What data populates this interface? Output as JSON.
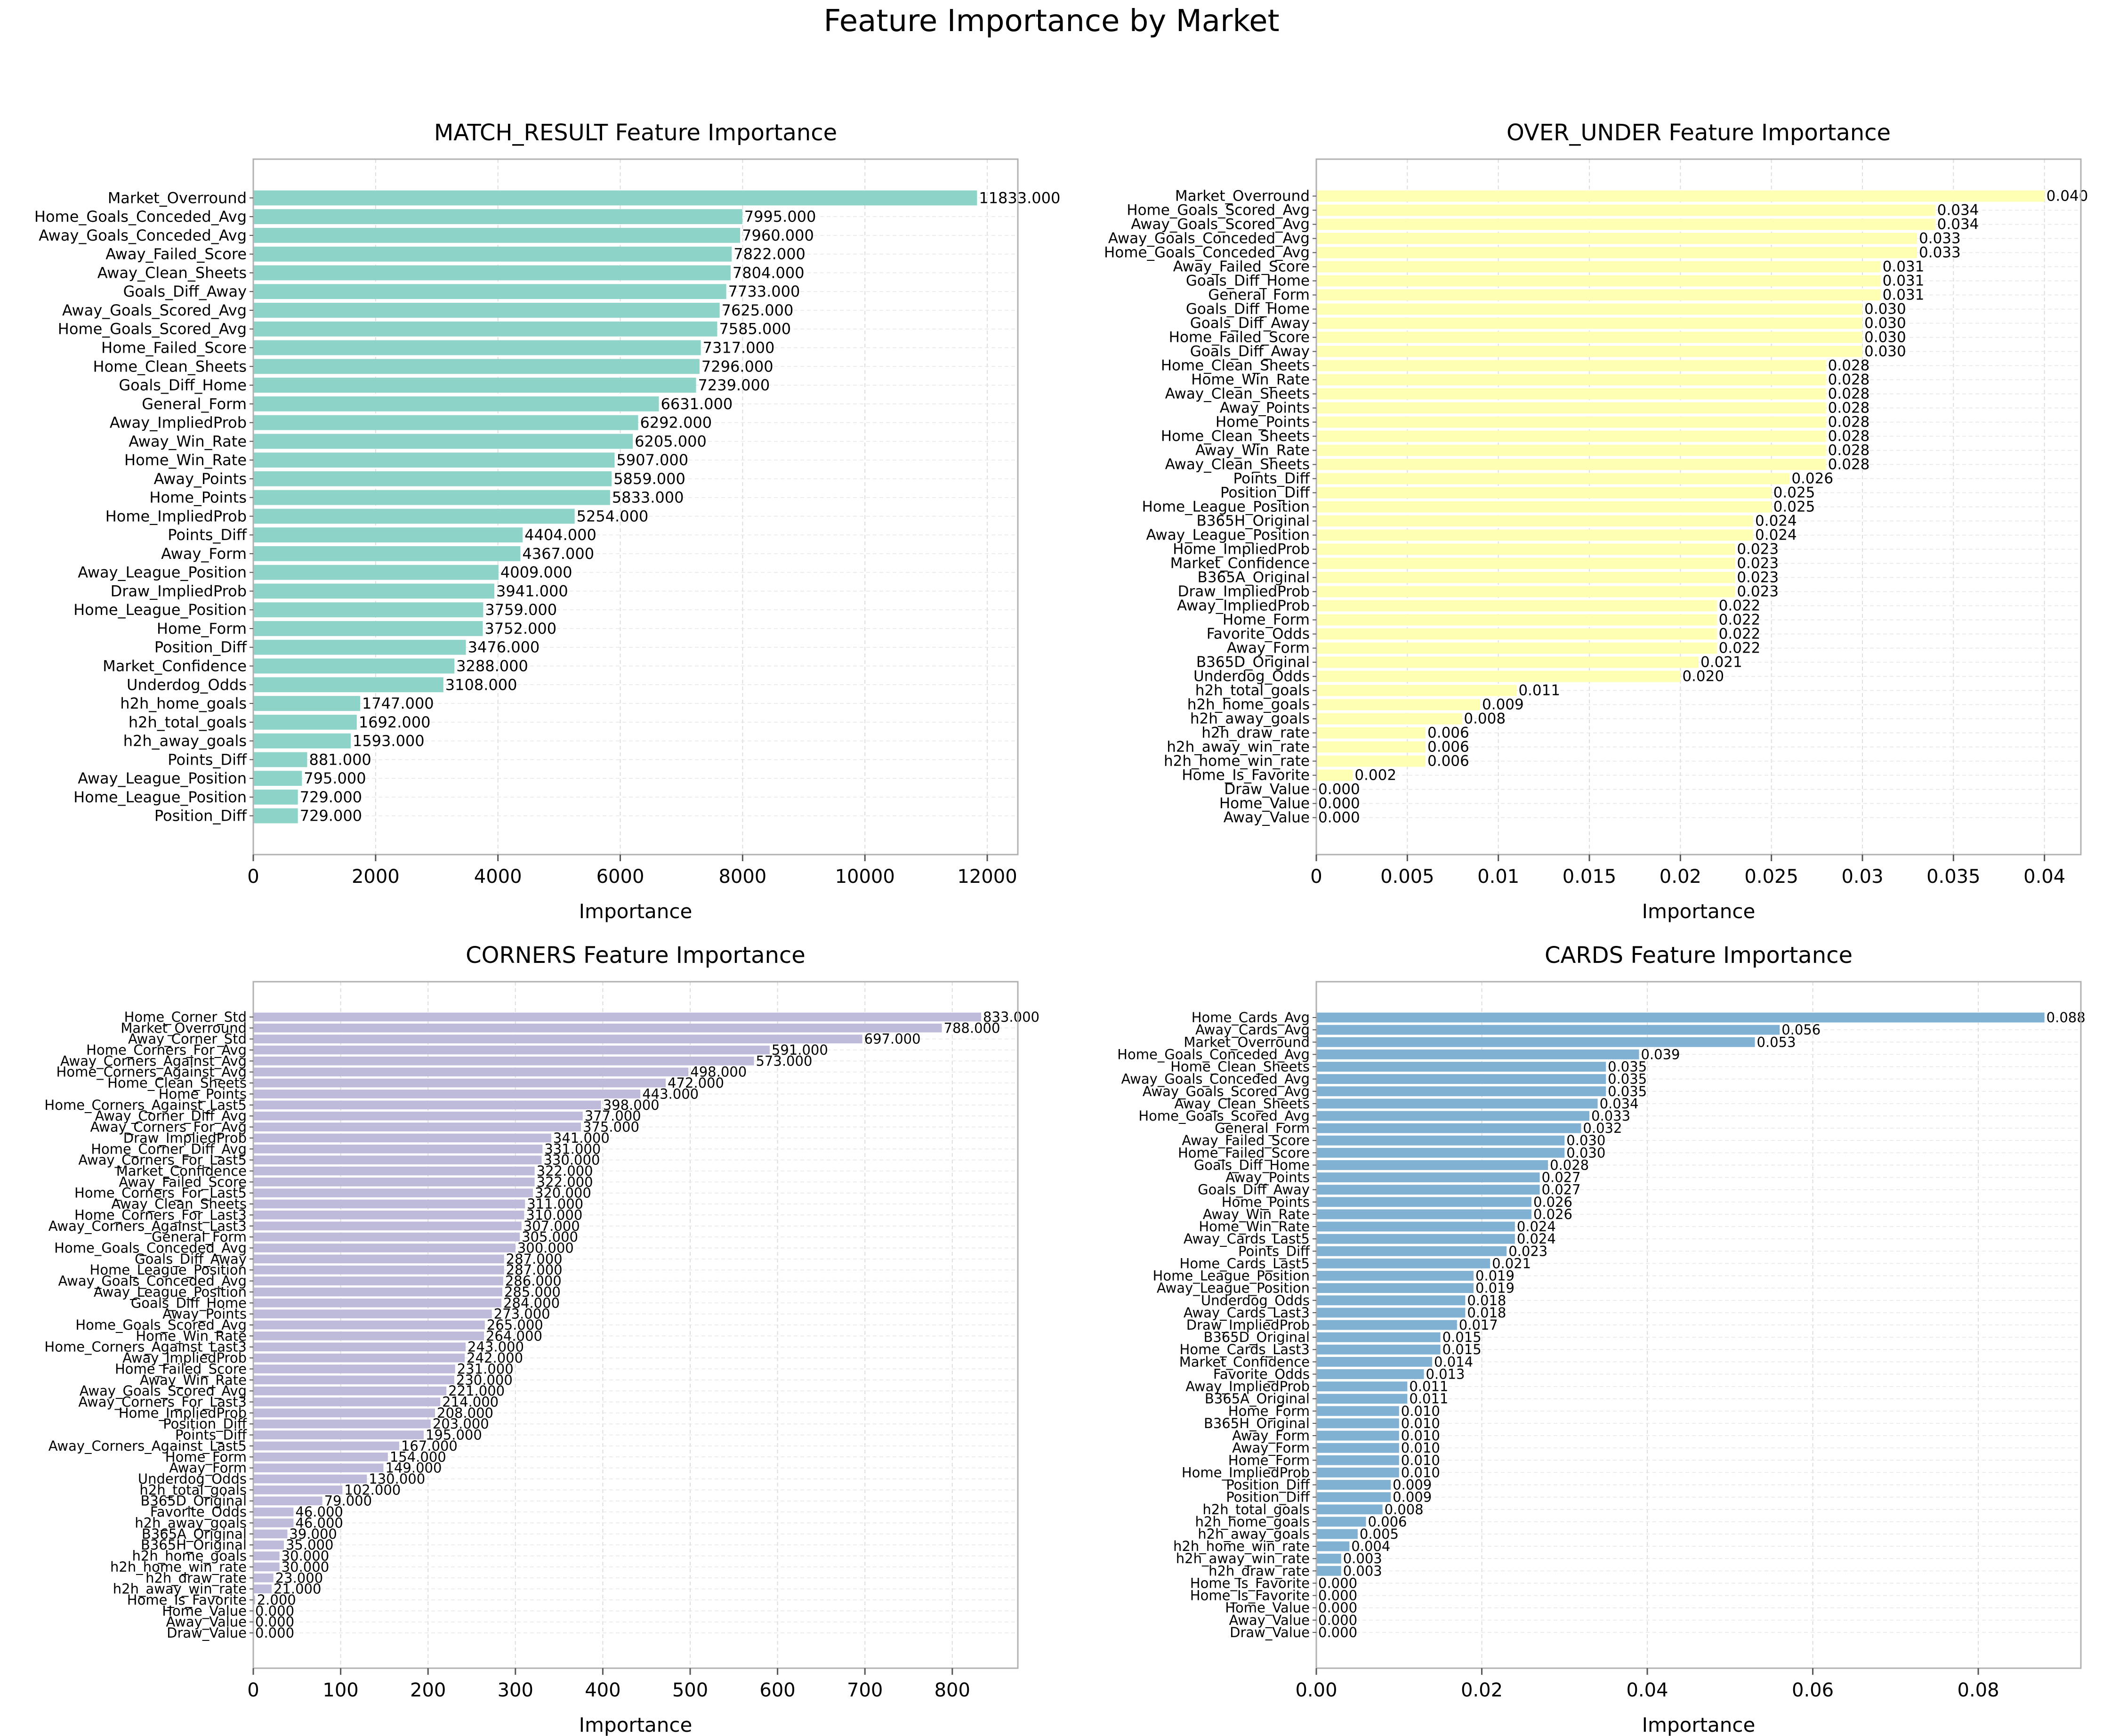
{
  "figure_title": "Feature Importance by Market",
  "chart_data": [
    {
      "type": "bar",
      "orientation": "horizontal",
      "title": "MATCH_RESULT Feature Importance",
      "xlabel": "Importance",
      "ylabel": "",
      "xlim": [
        0,
        12500
      ],
      "xticks": [
        0,
        2000,
        4000,
        6000,
        8000,
        10000,
        12000
      ],
      "value_decimals": 3,
      "grid": true,
      "color": "#8dd3c7",
      "categories": [
        "Market_Overround",
        "Home_Goals_Conceded_Avg",
        "Away_Goals_Conceded_Avg",
        "Away_Failed_Score",
        "Away_Clean_Sheets",
        "Goals_Diff_Away",
        "Away_Goals_Scored_Avg",
        "Home_Goals_Scored_Avg",
        "Home_Failed_Score",
        "Home_Clean_Sheets",
        "Goals_Diff_Home",
        "General_Form",
        "Away_ImpliedProb",
        "Away_Win_Rate",
        "Home_Win_Rate",
        "Away_Points",
        "Home_Points",
        "Home_ImpliedProb",
        "Points_Diff",
        "Away_Form",
        "Away_League_Position",
        "Draw_ImpliedProb",
        "Home_League_Position",
        "Home_Form",
        "Position_Diff",
        "Market_Confidence",
        "Underdog_Odds",
        "h2h_home_goals",
        "h2h_total_goals",
        "h2h_away_goals",
        "Points_Diff",
        "Away_League_Position",
        "Home_League_Position",
        "Position_Diff"
      ],
      "values": [
        11833,
        7995,
        7960,
        7822,
        7804,
        7733,
        7625,
        7585,
        7317,
        7296,
        7239,
        6631,
        6292,
        6205,
        5907,
        5859,
        5833,
        5254,
        4404,
        4367,
        4009,
        3941,
        3759,
        3752,
        3476,
        3288,
        3108,
        1747,
        1692,
        1593,
        881,
        795,
        729,
        729
      ]
    },
    {
      "type": "bar",
      "orientation": "horizontal",
      "title": "OVER_UNDER Feature Importance",
      "xlabel": "Importance",
      "ylabel": "",
      "xlim": [
        0,
        0.042
      ],
      "xticks": [
        0,
        0.005,
        0.01,
        0.015,
        0.02,
        0.025,
        0.03,
        0.035,
        0.04
      ],
      "value_decimals": 3,
      "grid": true,
      "color": "#ffffb3",
      "categories": [
        "Market_Overround",
        "Home_Goals_Scored_Avg",
        "Away_Goals_Scored_Avg",
        "Away_Goals_Conceded_Avg",
        "Home_Goals_Conceded_Avg",
        "Away_Failed_Score",
        "Goals_Diff_Home",
        "General_Form",
        "Goals_Diff_Home",
        "Goals_Diff_Away",
        "Home_Failed_Score",
        "Goals_Diff_Away",
        "Home_Clean_Sheets",
        "Home_Win_Rate",
        "Away_Clean_Sheets",
        "Away_Points",
        "Home_Points",
        "Home_Clean_Sheets",
        "Away_Win_Rate",
        "Away_Clean_Sheets",
        "Points_Diff",
        "Position_Diff",
        "Home_League_Position",
        "B365H_Original",
        "Away_League_Position",
        "Home_ImpliedProb",
        "Market_Confidence",
        "B365A_Original",
        "Draw_ImpliedProb",
        "Away_ImpliedProb",
        "Home_Form",
        "Favorite_Odds",
        "Away_Form",
        "B365D_Original",
        "Underdog_Odds",
        "h2h_total_goals",
        "h2h_home_goals",
        "h2h_away_goals",
        "h2h_draw_rate",
        "h2h_away_win_rate",
        "h2h_home_win_rate",
        "Home_Is_Favorite",
        "Draw_Value",
        "Home_Value",
        "Away_Value"
      ],
      "values": [
        0.04,
        0.034,
        0.034,
        0.033,
        0.033,
        0.031,
        0.031,
        0.031,
        0.03,
        0.03,
        0.03,
        0.03,
        0.028,
        0.028,
        0.028,
        0.028,
        0.028,
        0.028,
        0.028,
        0.028,
        0.026,
        0.025,
        0.025,
        0.024,
        0.024,
        0.023,
        0.023,
        0.023,
        0.023,
        0.022,
        0.022,
        0.022,
        0.022,
        0.021,
        0.02,
        0.011,
        0.009,
        0.008,
        0.006,
        0.006,
        0.006,
        0.002,
        0.0,
        0.0,
        0.0
      ]
    },
    {
      "type": "bar",
      "orientation": "horizontal",
      "title": "CORNERS Feature Importance",
      "xlabel": "Importance",
      "ylabel": "",
      "xlim": [
        0,
        875
      ],
      "xticks": [
        0,
        100,
        200,
        300,
        400,
        500,
        600,
        700,
        800
      ],
      "value_decimals": 3,
      "grid": true,
      "color": "#bebada",
      "categories": [
        "Home_Corner_Std",
        "Market_Overround",
        "Away_Corner_Std",
        "Home_Corners_For_Avg",
        "Away_Corners_Against_Avg",
        "Home_Corners_Against_Avg",
        "Home_Clean_Sheets",
        "Home_Points",
        "Home_Corners_Against_Last5",
        "Away_Corner_Diff_Avg",
        "Away_Corners_For_Avg",
        "Draw_ImpliedProb",
        "Home_Corner_Diff_Avg",
        "Away_Corners_For_Last5",
        "Market_Confidence",
        "Away_Failed_Score",
        "Home_Corners_For_Last5",
        "Away_Clean_Sheets",
        "Home_Corners_For_Last3",
        "Away_Corners_Against_Last3",
        "General_Form",
        "Home_Goals_Conceded_Avg",
        "Goals_Diff_Away",
        "Home_League_Position",
        "Away_Goals_Conceded_Avg",
        "Away_League_Position",
        "Goals_Diff_Home",
        "Away_Points",
        "Home_Goals_Scored_Avg",
        "Home_Win_Rate",
        "Home_Corners_Against_Last3",
        "Away_ImpliedProb",
        "Home_Failed_Score",
        "Away_Win_Rate",
        "Away_Goals_Scored_Avg",
        "Away_Corners_For_Last3",
        "Home_ImpliedProb",
        "Position_Diff",
        "Points_Diff",
        "Away_Corners_Against_Last5",
        "Home_Form",
        "Away_Form",
        "Underdog_Odds",
        "h2h_total_goals",
        "B365D_Original",
        "Favorite_Odds",
        "h2h_away_goals",
        "B365A_Original",
        "B365H_Original",
        "h2h_home_goals",
        "h2h_home_win_rate",
        "h2h_draw_rate",
        "h2h_away_win_rate",
        "Home_Is_Favorite",
        "Home_Value",
        "Away_Value",
        "Draw_Value"
      ],
      "values": [
        833,
        788,
        697,
        591,
        573,
        498,
        472,
        443,
        398,
        377,
        375,
        341,
        331,
        330,
        322,
        322,
        320,
        311,
        310,
        307,
        305,
        300,
        287,
        287,
        286,
        285,
        284,
        273,
        265,
        264,
        243,
        242,
        231,
        230,
        221,
        214,
        208,
        203,
        195,
        167,
        154,
        149,
        130,
        102,
        79,
        46,
        46,
        39,
        35,
        30,
        30,
        23,
        21,
        2,
        0,
        0,
        0
      ]
    },
    {
      "type": "bar",
      "orientation": "horizontal",
      "title": "CARDS Feature Importance",
      "xlabel": "Importance",
      "ylabel": "",
      "xlim": [
        0,
        0.0924
      ],
      "xticks": [
        0,
        0.02,
        0.04,
        0.06,
        0.08
      ],
      "tick_labels": [
        "0.00",
        "0.02",
        "0.04",
        "0.06",
        "0.08"
      ],
      "value_decimals": 3,
      "grid": true,
      "color": "#80b1d3",
      "categories": [
        "Home_Cards_Avg",
        "Away_Cards_Avg",
        "Market_Overround",
        "Home_Goals_Conceded_Avg",
        "Home_Clean_Sheets",
        "Away_Goals_Conceded_Avg",
        "Away_Goals_Scored_Avg",
        "Away_Clean_Sheets",
        "Home_Goals_Scored_Avg",
        "General_Form",
        "Away_Failed_Score",
        "Home_Failed_Score",
        "Goals_Diff_Home",
        "Away_Points",
        "Goals_Diff_Away",
        "Home_Points",
        "Away_Win_Rate",
        "Home_Win_Rate",
        "Away_Cards_Last5",
        "Points_Diff",
        "Home_Cards_Last5",
        "Home_League_Position",
        "Away_League_Position",
        "Underdog_Odds",
        "Away_Cards_Last3",
        "Draw_ImpliedProb",
        "B365D_Original",
        "Home_Cards_Last3",
        "Market_Confidence",
        "Favorite_Odds",
        "Away_ImpliedProb",
        "B365A_Original",
        "Home_Form",
        "B365H_Original",
        "Away_Form",
        "Away_Form",
        "Home_Form",
        "Home_ImpliedProb",
        "Position_Diff",
        "Position_Diff",
        "h2h_total_goals",
        "h2h_home_goals",
        "h2h_away_goals",
        "h2h_home_win_rate",
        "h2h_away_win_rate",
        "h2h_draw_rate",
        "Home_Is_Favorite",
        "Home_Is_Favorite",
        "Home_Value",
        "Away_Value",
        "Draw_Value"
      ],
      "values": [
        0.088,
        0.056,
        0.053,
        0.039,
        0.035,
        0.035,
        0.035,
        0.034,
        0.033,
        0.032,
        0.03,
        0.03,
        0.028,
        0.027,
        0.027,
        0.026,
        0.026,
        0.024,
        0.024,
        0.023,
        0.021,
        0.019,
        0.019,
        0.018,
        0.018,
        0.017,
        0.015,
        0.015,
        0.014,
        0.013,
        0.011,
        0.011,
        0.01,
        0.01,
        0.01,
        0.01,
        0.01,
        0.01,
        0.009,
        0.009,
        0.008,
        0.006,
        0.005,
        0.004,
        0.003,
        0.003,
        0.0,
        0.0,
        0.0,
        0.0,
        0.0
      ]
    }
  ]
}
